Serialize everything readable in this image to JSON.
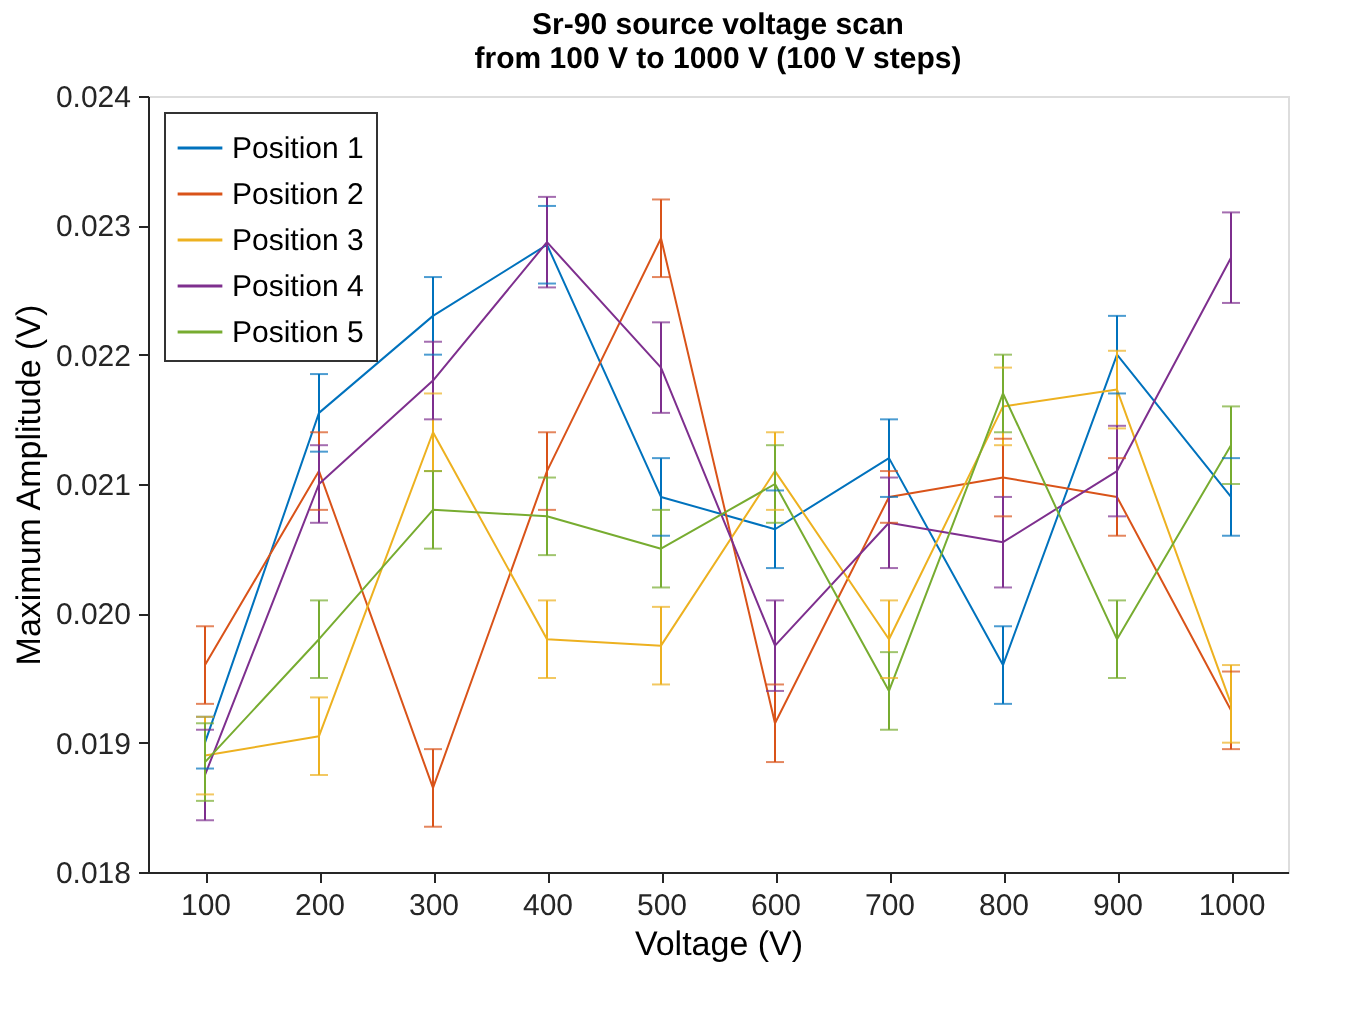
{
  "chart_data": {
    "type": "line",
    "title": "Sr-90 source voltage scan\nfrom 100 V to 1000 V (100 V steps)",
    "xlabel": "Voltage (V)",
    "ylabel": "Maximum Amplitude (V)",
    "x": [
      100,
      200,
      300,
      400,
      500,
      600,
      700,
      800,
      900,
      1000
    ],
    "xlim": [
      50,
      1050
    ],
    "xticks": [
      100,
      200,
      300,
      400,
      500,
      600,
      700,
      800,
      900,
      1000
    ],
    "ylim": [
      0.018,
      0.024
    ],
    "yticks": [
      0.018,
      0.019,
      {
        "value": 0.02,
        "label": "0.020"
      },
      0.021,
      0.022,
      0.023,
      0.024
    ],
    "grid": false,
    "legend": "top left",
    "marker": "none",
    "line_style": "solid",
    "series": [
      {
        "name": "Position 1",
        "color": "#0072bd",
        "values": [
          0.019,
          0.02155,
          0.0223,
          0.02285,
          0.0209,
          0.02065,
          0.0212,
          0.0196,
          0.022,
          0.0209
        ],
        "errors": [
          0.0002,
          0.0003,
          0.0003,
          0.0003,
          0.0003,
          0.0003,
          0.0003,
          0.0003,
          0.0003,
          0.0003
        ]
      },
      {
        "name": "Position 2",
        "color": "#d95319",
        "values": [
          0.0196,
          0.0211,
          0.01865,
          0.0211,
          0.0229,
          0.01915,
          0.0209,
          0.02105,
          0.0209,
          0.01925
        ],
        "errors": [
          0.0003,
          0.0003,
          0.0003,
          0.0003,
          0.0003,
          0.0003,
          0.0002,
          0.0003,
          0.0003,
          0.0003
        ]
      },
      {
        "name": "Position 3",
        "color": "#edb120",
        "values": [
          0.0189,
          0.01905,
          0.0214,
          0.0198,
          0.01975,
          0.0211,
          0.0198,
          0.0216,
          0.02173,
          0.0193
        ],
        "errors": [
          0.0003,
          0.0003,
          0.0003,
          0.0003,
          0.0003,
          0.0003,
          0.0003,
          0.0003,
          0.0003,
          0.0003
        ]
      },
      {
        "name": "Position 4",
        "color": "#7e2f8e",
        "values": [
          0.01875,
          0.021,
          0.0218,
          0.02287,
          0.0219,
          0.01975,
          0.0207,
          0.02055,
          0.0211,
          0.02275
        ],
        "errors": [
          0.00035,
          0.0003,
          0.0003,
          0.00035,
          0.00035,
          0.00035,
          0.00035,
          0.00035,
          0.00035,
          0.00035
        ]
      },
      {
        "name": "Position 5",
        "color": "#77ac30",
        "values": [
          0.01885,
          0.0198,
          0.0208,
          0.02075,
          0.0205,
          0.021,
          0.0194,
          0.0217,
          0.0198,
          0.0213
        ],
        "errors": [
          0.0003,
          0.0003,
          0.0003,
          0.0003,
          0.0003,
          0.0003,
          0.0003,
          0.0003,
          0.0003,
          0.0003
        ]
      }
    ]
  }
}
